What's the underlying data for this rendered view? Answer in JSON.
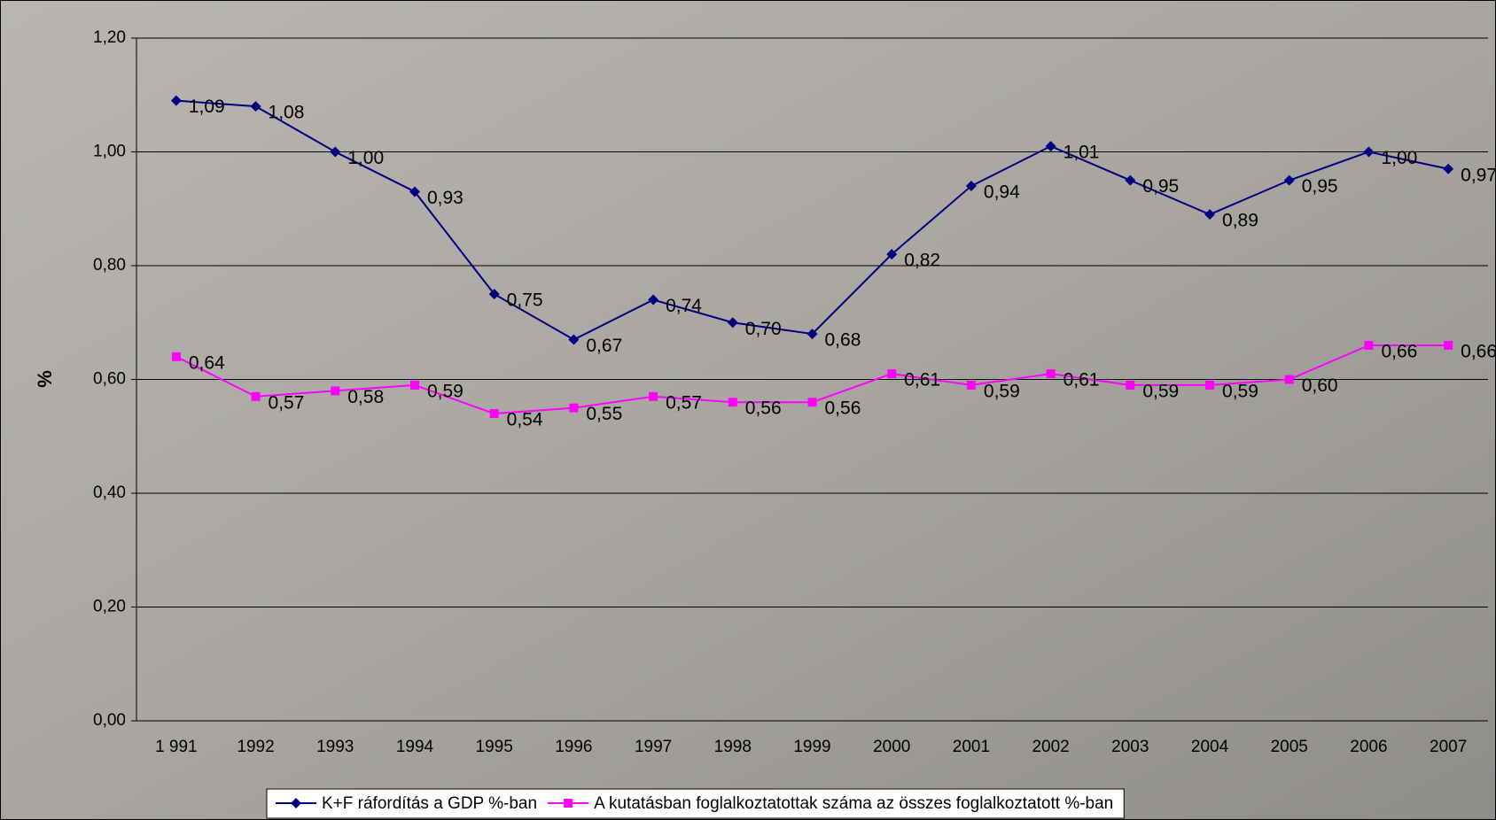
{
  "chart_data": {
    "type": "line",
    "y_label": "%",
    "categories": [
      "1 991",
      "1992",
      "1993",
      "1994",
      "1995",
      "1996",
      "1997",
      "1998",
      "1999",
      "2000",
      "2001",
      "2002",
      "2003",
      "2004",
      "2005",
      "2006",
      "2007"
    ],
    "series": [
      {
        "name": "K+F ráfordítás a GDP %-ban",
        "color": "#000080",
        "marker": "diamond",
        "values": [
          1.09,
          1.08,
          1.0,
          0.93,
          0.75,
          0.67,
          0.74,
          0.7,
          0.68,
          0.82,
          0.94,
          1.01,
          0.95,
          0.89,
          0.95,
          1.0,
          0.97
        ],
        "value_labels": [
          "1,09",
          "1,08",
          "1,00",
          "0,93",
          "0,75",
          "0,67",
          "0,74",
          "0,70",
          "0,68",
          "0,82",
          "0,94",
          "1,01",
          "0,95",
          "0,89",
          "0,95",
          "1,00",
          "0,97"
        ]
      },
      {
        "name": "A kutatásban foglalkoztatottak száma az összes foglalkoztatott %-ban",
        "color": "#ff00ff",
        "marker": "square",
        "values": [
          0.64,
          0.57,
          0.58,
          0.59,
          0.54,
          0.55,
          0.57,
          0.56,
          0.56,
          0.61,
          0.59,
          0.61,
          0.59,
          0.59,
          0.6,
          0.66,
          0.66
        ],
        "value_labels": [
          "0,64",
          "0,57",
          "0,58",
          "0,59",
          "0,54",
          "0,55",
          "0,57",
          "0,56",
          "0,56",
          "0,61",
          "0,59",
          "0,61",
          "0,59",
          "0,59",
          "0,60",
          "0,66",
          "0,66"
        ]
      }
    ],
    "ylim": [
      0,
      1.2
    ],
    "yticks": [
      {
        "value": 0,
        "label": "0,00"
      },
      {
        "value": 0.2,
        "label": "0,20"
      },
      {
        "value": 0.4,
        "label": "0,40"
      },
      {
        "value": 0.6,
        "label": "0,60"
      },
      {
        "value": 0.8,
        "label": "0,80"
      },
      {
        "value": 1.0,
        "label": "1,00"
      },
      {
        "value": 1.2,
        "label": "1,20"
      }
    ],
    "grid": true,
    "legend": "bottom"
  }
}
